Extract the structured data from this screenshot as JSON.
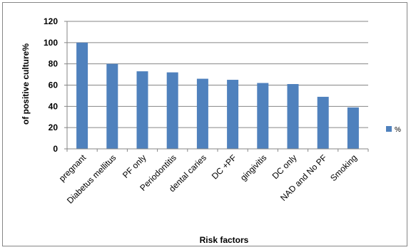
{
  "chart_data": {
    "type": "bar",
    "categories": [
      "pregnant",
      "Diabetus mellitus",
      "PF only",
      "Periodontitis",
      "dental caries",
      "DC +PF",
      "gingivitis",
      "DC only",
      "NAD and No PF",
      "Smoking"
    ],
    "series": [
      {
        "name": "%",
        "values": [
          100,
          80,
          73,
          72,
          66,
          65,
          62,
          61,
          49,
          39
        ]
      }
    ],
    "xlabel": "Risk factors",
    "ylabel": "of positive culture%",
    "ylim": [
      0,
      120
    ],
    "yticks": [
      "0",
      "20",
      "40",
      "60",
      "80",
      "100",
      "120"
    ],
    "grid": true,
    "legend": "right"
  },
  "colors": {
    "bar": "#4f81bd",
    "grid": "#868686",
    "axis": "#868686"
  }
}
